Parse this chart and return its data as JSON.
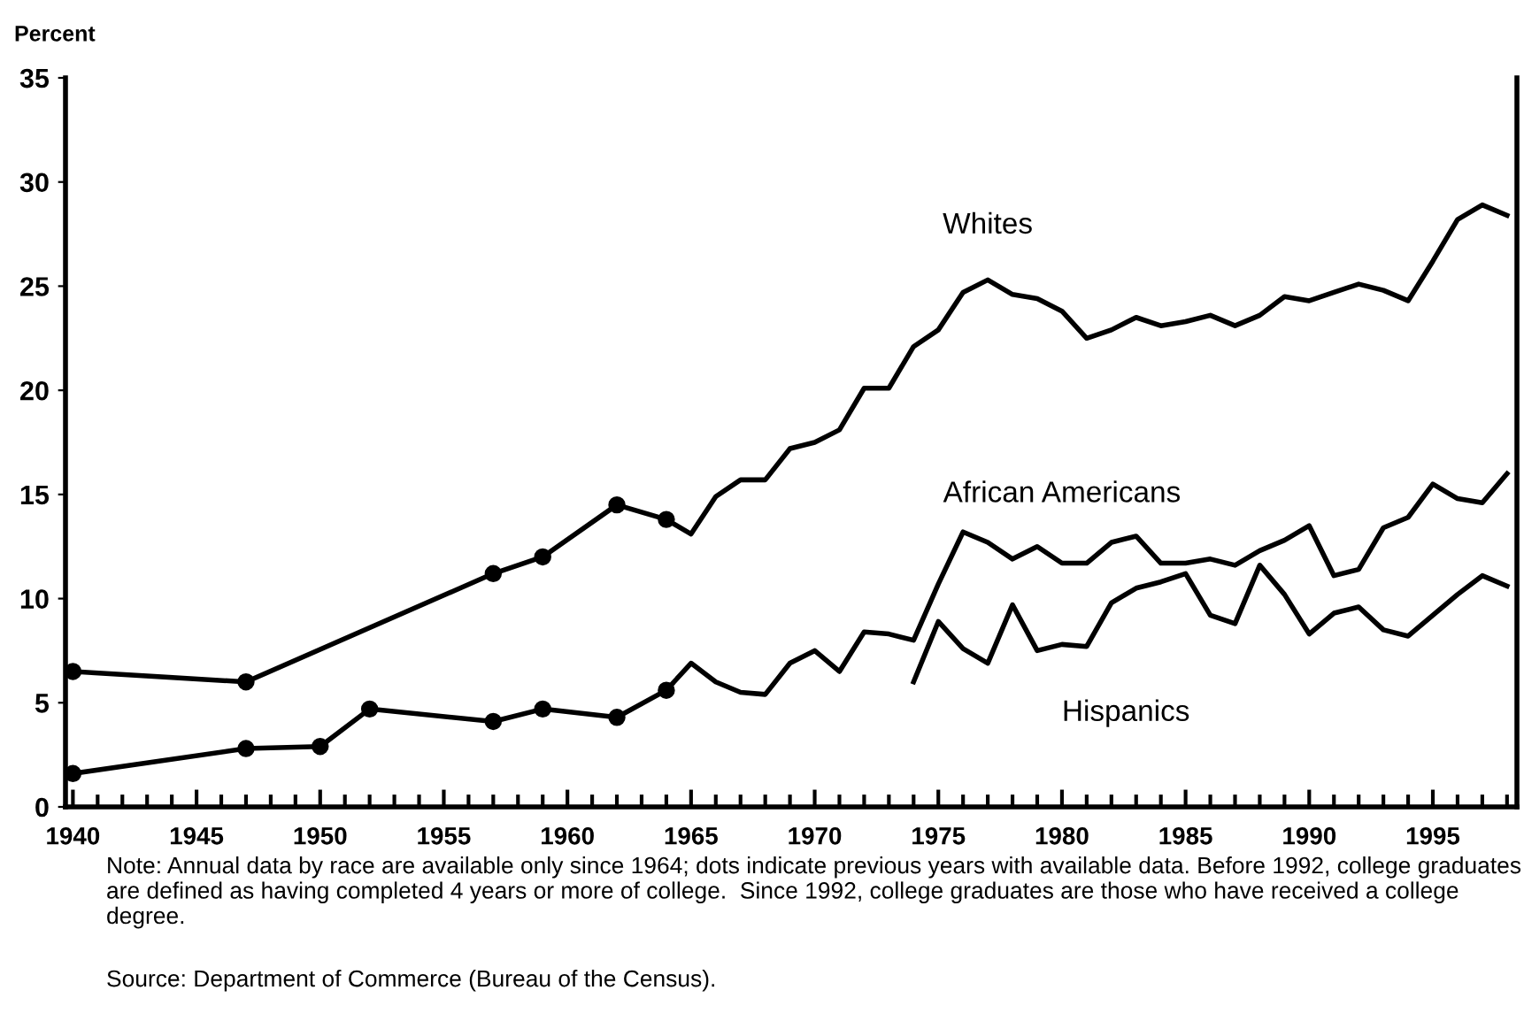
{
  "chart_data": {
    "type": "line",
    "ylabel": "Percent",
    "xlim": [
      1939.7,
      1998.4
    ],
    "xticks": [
      1940,
      1945,
      1950,
      1955,
      1960,
      1965,
      1970,
      1975,
      1980,
      1985,
      1990,
      1995
    ],
    "ylim": [
      0,
      35
    ],
    "yticks": [
      0,
      5,
      10,
      15,
      20,
      25,
      30,
      35
    ],
    "grid": false,
    "legend": false,
    "line_style": "solid",
    "series": [
      {
        "name": "Whites",
        "color": "#000000",
        "x": [
          1940,
          1947,
          1957,
          1959,
          1962,
          1964,
          1965,
          1966,
          1967,
          1968,
          1969,
          1970,
          1971,
          1972,
          1973,
          1974,
          1975,
          1976,
          1977,
          1978,
          1979,
          1980,
          1981,
          1982,
          1983,
          1984,
          1985,
          1986,
          1987,
          1988,
          1989,
          1990,
          1991,
          1992,
          1993,
          1994,
          1995,
          1996,
          1997,
          1998
        ],
        "values": [
          6.5,
          6.0,
          11.2,
          12.0,
          14.5,
          13.8,
          13.1,
          14.9,
          15.7,
          15.7,
          17.2,
          17.5,
          18.1,
          20.1,
          20.1,
          22.1,
          22.9,
          24.7,
          25.3,
          24.6,
          24.4,
          23.8,
          22.5,
          22.9,
          23.5,
          23.1,
          23.3,
          23.6,
          23.1,
          23.6,
          24.5,
          24.3,
          24.7,
          25.1,
          24.8,
          24.3,
          26.2,
          28.2,
          28.9,
          28.4
        ]
      },
      {
        "name": "African Americans",
        "color": "#000000",
        "x": [
          1940,
          1947,
          1950,
          1952,
          1957,
          1959,
          1962,
          1964,
          1965,
          1966,
          1967,
          1968,
          1969,
          1970,
          1971,
          1972,
          1973,
          1974,
          1975,
          1976,
          1977,
          1978,
          1979,
          1980,
          1981,
          1982,
          1983,
          1984,
          1985,
          1986,
          1987,
          1988,
          1989,
          1990,
          1991,
          1992,
          1993,
          1994,
          1995,
          1996,
          1997,
          1998
        ],
        "values": [
          1.6,
          2.8,
          2.9,
          4.7,
          4.1,
          4.7,
          4.3,
          5.6,
          6.9,
          6.0,
          5.5,
          5.4,
          6.9,
          7.5,
          6.5,
          8.4,
          8.3,
          8.0,
          10.7,
          13.2,
          12.7,
          11.9,
          12.5,
          11.7,
          11.7,
          12.7,
          13.0,
          11.7,
          11.7,
          11.9,
          11.6,
          12.3,
          12.8,
          13.5,
          11.1,
          11.4,
          13.4,
          13.9,
          15.5,
          14.8,
          14.6,
          16.0
        ]
      },
      {
        "name": "Hispanics",
        "color": "#000000",
        "x": [
          1974,
          1975,
          1976,
          1977,
          1978,
          1979,
          1980,
          1981,
          1982,
          1983,
          1984,
          1985,
          1986,
          1987,
          1988,
          1989,
          1990,
          1991,
          1992,
          1993,
          1994,
          1995,
          1996,
          1997,
          1998
        ],
        "values": [
          6.0,
          8.9,
          7.6,
          6.9,
          9.7,
          7.5,
          7.8,
          7.7,
          9.8,
          10.5,
          10.8,
          11.2,
          9.2,
          8.8,
          11.6,
          10.2,
          8.3,
          9.3,
          9.6,
          8.5,
          8.2,
          9.2,
          10.2,
          11.1,
          10.6
        ]
      },
      {
        "type": "scatter",
        "color": "#000000",
        "marker": "circle",
        "x": [
          1940,
          1947,
          1957,
          1959,
          1962,
          1964,
          1940,
          1947,
          1950,
          1952,
          1957,
          1959,
          1962,
          1964
        ],
        "values": [
          6.5,
          6.0,
          11.2,
          12.0,
          14.5,
          13.8,
          1.6,
          2.8,
          2.9,
          4.7,
          4.1,
          4.7,
          4.3,
          5.6
        ]
      }
    ],
    "annotations": [
      "Note: Annual data by race are available only since 1964; dots indicate previous years with available data. Before 1992, college graduates are defined as having completed 4 years or more of college.  Since 1992, college graduates are those who have received a college degree.",
      "Source: Department of Commerce (Bureau of the Census)."
    ]
  }
}
